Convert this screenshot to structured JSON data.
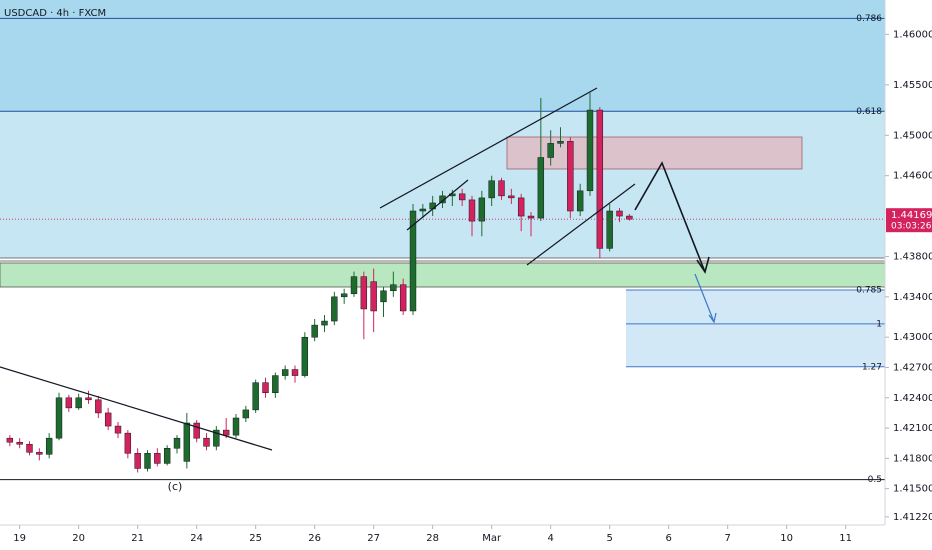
{
  "chart_data": {
    "type": "candlestick",
    "title": "USDCAD · 4h · FXCM",
    "annotation": "(c)",
    "up_color": "#1e6b2e",
    "down_color": "#d3225d",
    "xlim": [
      -2,
      88
    ],
    "ylim": [
      1.4114,
      1.4634
    ],
    "xticks": [
      {
        "value": 0,
        "label": "19"
      },
      {
        "value": 6,
        "label": "20"
      },
      {
        "value": 12,
        "label": "21"
      },
      {
        "value": 18,
        "label": "24"
      },
      {
        "value": 24,
        "label": "25"
      },
      {
        "value": 30,
        "label": "26"
      },
      {
        "value": 36,
        "label": "27"
      },
      {
        "value": 42,
        "label": "28"
      },
      {
        "value": 48,
        "label": "Mar"
      },
      {
        "value": 54,
        "label": "4"
      },
      {
        "value": 60,
        "label": "5"
      },
      {
        "value": 66,
        "label": "6"
      },
      {
        "value": 72,
        "label": "7"
      },
      {
        "value": 78,
        "label": "10"
      },
      {
        "value": 84,
        "label": "11"
      }
    ],
    "yticks": [
      {
        "value": 1.46,
        "label": "1.46000"
      },
      {
        "value": 1.455,
        "label": "1.45500"
      },
      {
        "value": 1.45,
        "label": "1.45000"
      },
      {
        "value": 1.446,
        "label": "1.44600"
      },
      {
        "value": 1.438,
        "label": "1.43800"
      },
      {
        "value": 1.434,
        "label": "1.43400"
      },
      {
        "value": 1.43,
        "label": "1.43000"
      },
      {
        "value": 1.427,
        "label": "1.42700"
      },
      {
        "value": 1.424,
        "label": "1.42400"
      },
      {
        "value": 1.421,
        "label": "1.42100"
      },
      {
        "value": 1.418,
        "label": "1.41800"
      },
      {
        "value": 1.415,
        "label": "1.41500"
      },
      {
        "value": 1.4122,
        "label": "1.41220"
      }
    ],
    "x": [
      -1,
      0,
      1,
      2,
      3,
      4,
      5,
      6,
      7,
      8,
      9,
      10,
      11,
      12,
      13,
      14,
      15,
      16,
      17,
      18,
      19,
      20,
      21,
      22,
      23,
      24,
      25,
      26,
      27,
      28,
      29,
      30,
      31,
      32,
      33,
      34,
      35,
      36,
      37,
      38,
      39,
      40,
      41,
      42,
      43,
      44,
      45,
      46,
      47,
      48,
      49,
      50,
      51,
      52,
      53,
      54,
      55,
      56,
      57,
      58,
      59,
      60,
      61,
      62
    ],
    "candles": [
      [
        1.42,
        1.4203,
        1.4192,
        1.4196
      ],
      [
        1.4196,
        1.42,
        1.419,
        1.4194
      ],
      [
        1.4194,
        1.4197,
        1.4183,
        1.4186
      ],
      [
        1.4186,
        1.419,
        1.4178,
        1.4184
      ],
      [
        1.4184,
        1.4205,
        1.418,
        1.42
      ],
      [
        1.42,
        1.4245,
        1.4198,
        1.424
      ],
      [
        1.424,
        1.4243,
        1.4226,
        1.423
      ],
      [
        1.423,
        1.4244,
        1.4228,
        1.424
      ],
      [
        1.424,
        1.4247,
        1.4234,
        1.4238
      ],
      [
        1.4238,
        1.4242,
        1.422,
        1.4225
      ],
      [
        1.4225,
        1.423,
        1.4208,
        1.4212
      ],
      [
        1.4212,
        1.4216,
        1.42,
        1.4205
      ],
      [
        1.4205,
        1.4208,
        1.418,
        1.4185
      ],
      [
        1.4185,
        1.419,
        1.4166,
        1.417
      ],
      [
        1.417,
        1.4188,
        1.4167,
        1.4185
      ],
      [
        1.4185,
        1.419,
        1.4172,
        1.4175
      ],
      [
        1.4175,
        1.4193,
        1.4173,
        1.419
      ],
      [
        1.419,
        1.4203,
        1.4185,
        1.42
      ],
      [
        1.4177,
        1.4225,
        1.417,
        1.4215
      ],
      [
        1.4215,
        1.4218,
        1.4196,
        1.42
      ],
      [
        1.42,
        1.4205,
        1.4188,
        1.4192
      ],
      [
        1.4192,
        1.4212,
        1.4188,
        1.4208
      ],
      [
        1.4208,
        1.422,
        1.42,
        1.4203
      ],
      [
        1.4203,
        1.4224,
        1.42,
        1.422
      ],
      [
        1.422,
        1.4232,
        1.4216,
        1.4228
      ],
      [
        1.4228,
        1.4258,
        1.4225,
        1.4255
      ],
      [
        1.4255,
        1.426,
        1.424,
        1.4245
      ],
      [
        1.4245,
        1.4265,
        1.424,
        1.4262
      ],
      [
        1.4262,
        1.4272,
        1.4258,
        1.4268
      ],
      [
        1.4268,
        1.4272,
        1.4255,
        1.4262
      ],
      [
        1.4262,
        1.4305,
        1.426,
        1.43
      ],
      [
        1.43,
        1.4318,
        1.4296,
        1.4312
      ],
      [
        1.4312,
        1.4322,
        1.4305,
        1.4316
      ],
      [
        1.4316,
        1.4345,
        1.4312,
        1.434
      ],
      [
        1.434,
        1.4348,
        1.4333,
        1.4343
      ],
      [
        1.4343,
        1.4365,
        1.434,
        1.436
      ],
      [
        1.436,
        1.4365,
        1.4298,
        1.4328
      ],
      [
        1.4355,
        1.4368,
        1.4305,
        1.4326
      ],
      [
        1.4335,
        1.435,
        1.432,
        1.4346
      ],
      [
        1.4346,
        1.4365,
        1.434,
        1.4352
      ],
      [
        1.4352,
        1.4358,
        1.4322,
        1.4326
      ],
      [
        1.4326,
        1.4432,
        1.4322,
        1.4425
      ],
      [
        1.4425,
        1.4432,
        1.4418,
        1.4427
      ],
      [
        1.4427,
        1.444,
        1.442,
        1.4433
      ],
      [
        1.4433,
        1.4445,
        1.4428,
        1.444
      ],
      [
        1.444,
        1.4446,
        1.443,
        1.4442
      ],
      [
        1.4442,
        1.4447,
        1.443,
        1.4436
      ],
      [
        1.4436,
        1.444,
        1.44,
        1.4415
      ],
      [
        1.4415,
        1.4445,
        1.44,
        1.4438
      ],
      [
        1.4438,
        1.446,
        1.443,
        1.4455
      ],
      [
        1.4455,
        1.4458,
        1.4436,
        1.444
      ],
      [
        1.444,
        1.4447,
        1.4432,
        1.4438
      ],
      [
        1.4438,
        1.4442,
        1.4405,
        1.442
      ],
      [
        1.442,
        1.4424,
        1.44,
        1.4418
      ],
      [
        1.4418,
        1.4537,
        1.4415,
        1.4478
      ],
      [
        1.4478,
        1.4505,
        1.447,
        1.4492
      ],
      [
        1.4492,
        1.4508,
        1.4488,
        1.4494
      ],
      [
        1.4494,
        1.4498,
        1.4418,
        1.4425
      ],
      [
        1.4425,
        1.4452,
        1.442,
        1.4445
      ],
      [
        1.4445,
        1.4542,
        1.444,
        1.4525
      ],
      [
        1.4525,
        1.4528,
        1.4378,
        1.4388
      ],
      [
        1.4388,
        1.4432,
        1.4385,
        1.4425
      ],
      [
        1.4425,
        1.4428,
        1.4414,
        1.442
      ],
      [
        1.442,
        1.4422,
        1.44155,
        1.44169
      ]
    ],
    "levels": [
      {
        "ratio": 0.786,
        "price": 1.46158,
        "color": "#1e4fa0"
      },
      {
        "ratio": 0.618,
        "price": 1.45238,
        "color": "#1e4fa0"
      },
      {
        "ratio": 0.785,
        "price": 1.43468,
        "color": "#3a78c9"
      },
      {
        "ratio": 1,
        "price": 1.43132,
        "color": "#3a78c9"
      },
      {
        "ratio": 1.27,
        "price": 1.42707,
        "color": "#3a78c9"
      },
      {
        "ratio": 0.5,
        "price": 1.41589,
        "color": "#131722"
      }
    ],
    "last_price": 1.44169,
    "countdown": "03:03:26"
  }
}
